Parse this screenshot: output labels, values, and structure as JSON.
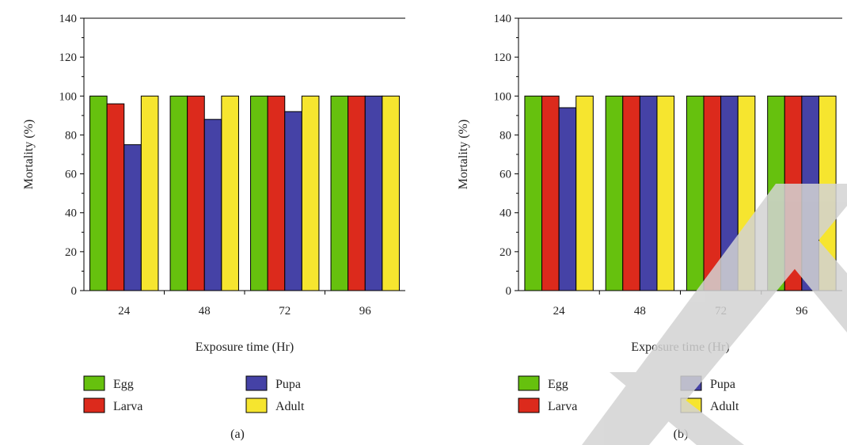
{
  "colors": {
    "Egg": "#66c10e",
    "Larva": "#dc2a1c",
    "Pupa": "#4542a6",
    "Adult": "#f6e52f",
    "axis": "#000000",
    "watermark": "#d3d3d3"
  },
  "chart_data": [
    {
      "type": "bar",
      "panel_label": "(a)",
      "xlabel": "Exposure time (Hr)",
      "ylabel": "Mortality (%)",
      "ylim": [
        0,
        140
      ],
      "yticks": [
        0,
        20,
        40,
        60,
        80,
        100,
        120,
        140
      ],
      "categories": [
        "24",
        "48",
        "72",
        "96"
      ],
      "series": [
        {
          "name": "Egg",
          "values": [
            100,
            100,
            100,
            100
          ]
        },
        {
          "name": "Larva",
          "values": [
            96,
            100,
            100,
            100
          ]
        },
        {
          "name": "Pupa",
          "values": [
            75,
            88,
            92,
            100
          ]
        },
        {
          "name": "Adult",
          "values": [
            100,
            100,
            100,
            100
          ]
        }
      ],
      "grid": false,
      "legend_position": "bottom"
    },
    {
      "type": "bar",
      "panel_label": "(b)",
      "xlabel": "Exposure time (Hr)",
      "ylabel": "Mortality (%)",
      "ylim": [
        0,
        140
      ],
      "yticks": [
        0,
        20,
        40,
        60,
        80,
        100,
        120,
        140
      ],
      "categories": [
        "24",
        "48",
        "72",
        "96"
      ],
      "series": [
        {
          "name": "Egg",
          "values": [
            100,
            100,
            100,
            100
          ]
        },
        {
          "name": "Larva",
          "values": [
            100,
            100,
            100,
            100
          ]
        },
        {
          "name": "Pupa",
          "values": [
            94,
            100,
            100,
            100
          ]
        },
        {
          "name": "Adult",
          "values": [
            100,
            100,
            100,
            100
          ]
        }
      ],
      "grid": false,
      "legend_position": "bottom"
    }
  ]
}
